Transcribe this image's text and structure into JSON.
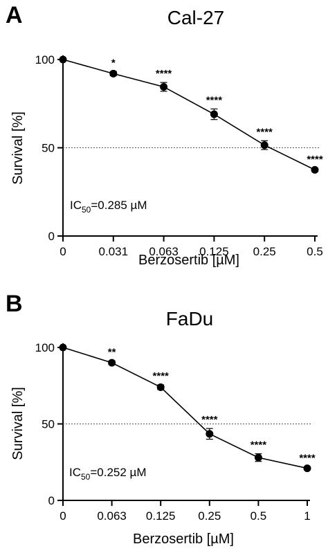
{
  "chart_data": [
    {
      "type": "line",
      "panel_label": "A",
      "title": "Cal-27",
      "xlabel": "Berzosertib [µM]",
      "ylabel": "Survival [%]",
      "categories": [
        "0",
        "0.031",
        "0.063",
        "0.125",
        "0.25",
        "0.5"
      ],
      "values": [
        100,
        92,
        84.5,
        69,
        51.5,
        37.5
      ],
      "errors": [
        0,
        1.2,
        2.5,
        3,
        2.5,
        1
      ],
      "significance": [
        "",
        "*",
        "****",
        "****",
        "****",
        "****"
      ],
      "ylim": [
        0,
        100
      ],
      "yticks": [
        "0",
        "50",
        "100"
      ],
      "reference_line": 50,
      "annotation": {
        "prefix": "IC",
        "sub": "50",
        "suffix": "=0.285 µM"
      },
      "grid": false
    },
    {
      "type": "line",
      "panel_label": "B",
      "title": "FaDu",
      "xlabel": "Berzosertib [µM]",
      "ylabel": "Survival [%]",
      "categories": [
        "0",
        "0.063",
        "0.125",
        "0.25",
        "0.5",
        "1"
      ],
      "values": [
        100,
        90,
        74,
        43.5,
        28,
        21
      ],
      "errors": [
        0,
        1.2,
        1.5,
        3.5,
        2.5,
        1
      ],
      "significance": [
        "",
        "**",
        "****",
        "****",
        "****",
        "****"
      ],
      "ylim": [
        0,
        100
      ],
      "yticks": [
        "0",
        "50",
        "100"
      ],
      "reference_line": 50,
      "annotation": {
        "prefix": "IC",
        "sub": "50",
        "suffix": "=0.252 µM"
      },
      "grid": false
    }
  ]
}
